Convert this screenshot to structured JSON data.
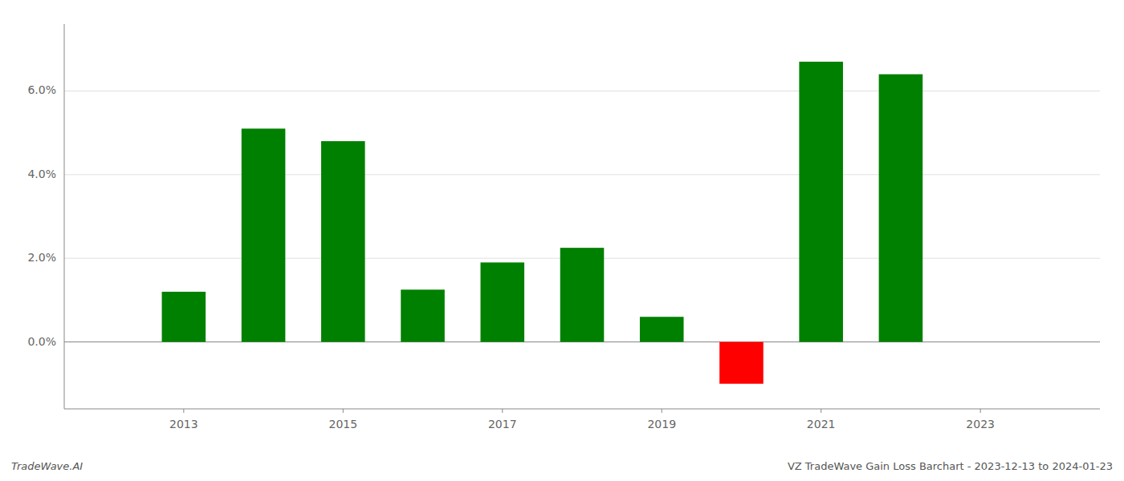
{
  "chart_data": {
    "type": "bar",
    "title": "VZ TradeWave Gain Loss Barchart - 2023-12-13 to 2024-01-23",
    "annotations": [
      "TradeWave.AI"
    ],
    "x": [
      2013,
      2014,
      2015,
      2016,
      2017,
      2018,
      2019,
      2020,
      2021,
      2022
    ],
    "values": [
      0.012,
      0.051,
      0.048,
      0.0125,
      0.019,
      0.0225,
      0.006,
      -0.01,
      0.067,
      0.064
    ],
    "colors": [
      "#008000",
      "#008000",
      "#008000",
      "#008000",
      "#008000",
      "#008000",
      "#008000",
      "#ff0000",
      "#008000",
      "#008000"
    ],
    "xlim": [
      2011.5,
      2024.5
    ],
    "xticks": [
      2013,
      2015,
      2017,
      2019,
      2021,
      2023
    ],
    "ylim": [
      -0.016,
      0.076
    ],
    "yticks": [
      {
        "value": 0.0,
        "label": "0.0%"
      },
      {
        "value": 0.02,
        "label": "2.0%"
      },
      {
        "value": 0.04,
        "label": "4.0%"
      },
      {
        "value": 0.06,
        "label": "6.0%"
      }
    ],
    "grid": true
  }
}
